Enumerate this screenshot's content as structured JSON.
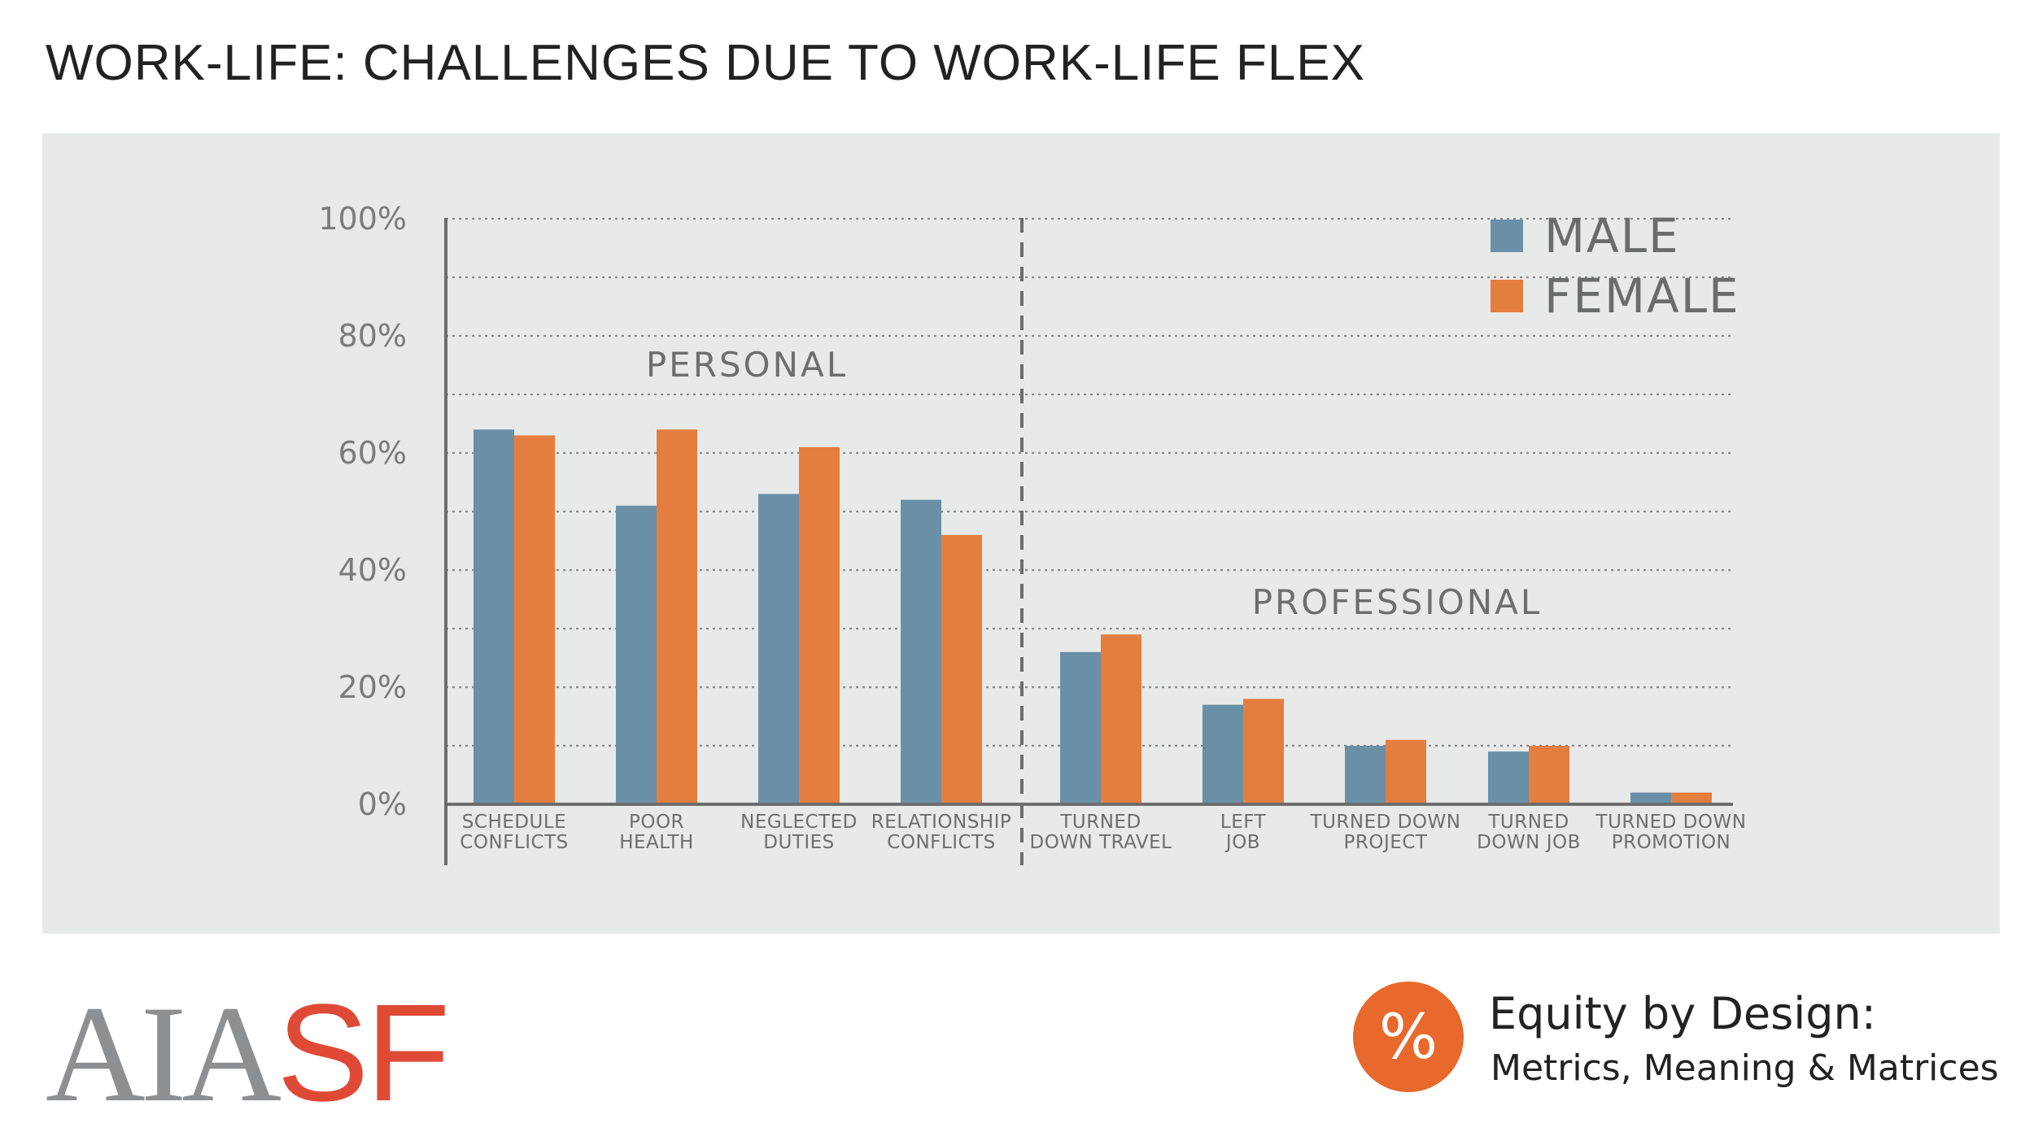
{
  "title": "WORK-LIFE: CHALLENGES DUE TO WORK-LIFE FLEX",
  "chart_data": {
    "type": "bar",
    "categories": [
      [
        "SCHEDULE",
        "CONFLICTS"
      ],
      [
        "POOR",
        "HEALTH"
      ],
      [
        "NEGLECTED",
        "DUTIES"
      ],
      [
        "RELATIONSHIP",
        "CONFLICTS"
      ],
      [
        "TURNED",
        "DOWN TRAVEL"
      ],
      [
        "LEFT",
        "JOB"
      ],
      [
        "TURNED DOWN",
        "PROJECT"
      ],
      [
        "TURNED",
        "DOWN JOB"
      ],
      [
        "TURNED DOWN",
        "PROMOTION"
      ]
    ],
    "series": [
      {
        "name": "MALE",
        "color": "#6a90a8",
        "values": [
          64,
          51,
          53,
          52,
          26,
          17,
          10,
          9,
          2
        ]
      },
      {
        "name": "FEMALE",
        "color": "#e47e3f",
        "values": [
          63,
          64,
          61,
          46,
          29,
          18,
          11,
          10,
          2
        ]
      }
    ],
    "ylim": [
      0,
      100
    ],
    "yticks": [
      "0%",
      "20%",
      "40%",
      "60%",
      "80%",
      "100%"
    ],
    "tick_values": [
      0,
      20,
      40,
      60,
      80,
      100
    ],
    "section_labels": [
      "PERSONAL",
      "PROFESSIONAL"
    ],
    "legend_position": "top-right",
    "grid": true
  },
  "footer": {
    "logo_aia": "AIA",
    "logo_sf": "SF",
    "badge_symbol": "%",
    "equity_title": "Equity by Design:",
    "equity_subtitle": "Metrics, Meaning & Matrices"
  }
}
